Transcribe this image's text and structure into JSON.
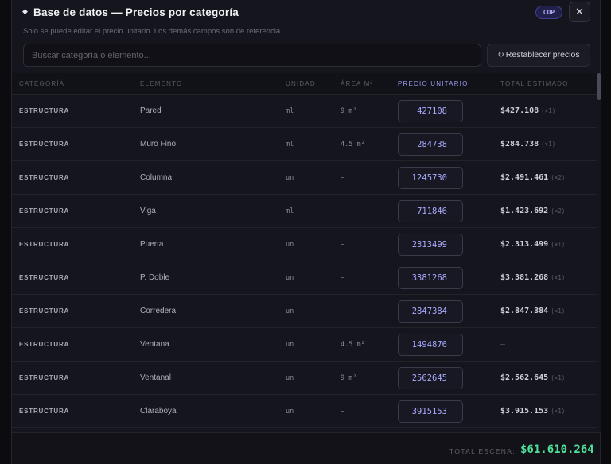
{
  "header": {
    "title": "Base de datos — Precios por categoría",
    "currency": "COP",
    "close_icon": "close-icon",
    "subtitle": "Solo se puede editar el precio unitario. Los demás campos son de referencia."
  },
  "search": {
    "placeholder": "Buscar categoría o elemento..."
  },
  "reset": {
    "icon": "refresh-icon",
    "label": "Restablecer precios"
  },
  "table": {
    "headers": {
      "category": "CATEGORÍA",
      "element": "ELEMENTO",
      "unit": "UNIDAD",
      "area": "ÁREA M²",
      "unit_price": "PRECIO UNITARIO",
      "total": "TOTAL ESTIMADO"
    },
    "rows": [
      {
        "category": "ESTRUCTURA",
        "element": "Pared",
        "unit": "ml",
        "area": "9 m²",
        "price": "427108",
        "total": "$427.108",
        "mult": "(×1)"
      },
      {
        "category": "ESTRUCTURA",
        "element": "Muro Fino",
        "unit": "ml",
        "area": "4.5 m²",
        "price": "284738",
        "total": "$284.738",
        "mult": "(×1)"
      },
      {
        "category": "ESTRUCTURA",
        "element": "Columna",
        "unit": "un",
        "area": "—",
        "price": "1245730",
        "total": "$2.491.461",
        "mult": "(×2)"
      },
      {
        "category": "ESTRUCTURA",
        "element": "Viga",
        "unit": "ml",
        "area": "—",
        "price": "711846",
        "total": "$1.423.692",
        "mult": "(×2)"
      },
      {
        "category": "ESTRUCTURA",
        "element": "Puerta",
        "unit": "un",
        "area": "—",
        "price": "2313499",
        "total": "$2.313.499",
        "mult": "(×1)"
      },
      {
        "category": "ESTRUCTURA",
        "element": "P. Doble",
        "unit": "un",
        "area": "—",
        "price": "3381268",
        "total": "$3.381.268",
        "mult": "(×1)"
      },
      {
        "category": "ESTRUCTURA",
        "element": "Corredera",
        "unit": "un",
        "area": "—",
        "price": "2847384",
        "total": "$2.847.384",
        "mult": "(×1)"
      },
      {
        "category": "ESTRUCTURA",
        "element": "Ventana",
        "unit": "un",
        "area": "4.5 m²",
        "price": "1494876",
        "total": "—",
        "mult": ""
      },
      {
        "category": "ESTRUCTURA",
        "element": "Ventanal",
        "unit": "un",
        "area": "9 m²",
        "price": "2562645",
        "total": "$2.562.645",
        "mult": "(×1)"
      },
      {
        "category": "ESTRUCTURA",
        "element": "Claraboya",
        "unit": "un",
        "area": "—",
        "price": "3915153",
        "total": "$3.915.153",
        "mult": "(×1)"
      }
    ]
  },
  "footer": {
    "label": "TOTAL ESCENA:",
    "total": "$61.610.264"
  }
}
